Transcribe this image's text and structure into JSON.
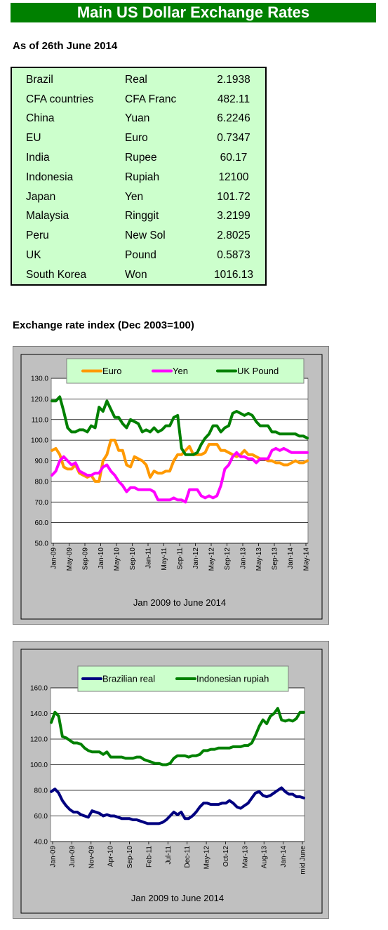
{
  "title": "Main US Dollar Exchange Rates",
  "as_of": "As of 26th June 2014",
  "rates": [
    {
      "country": "Brazil",
      "currency": "Real",
      "value": "2.1938"
    },
    {
      "country": "CFA countries",
      "currency": "CFA Franc",
      "value": "482.11"
    },
    {
      "country": "China",
      "currency": "Yuan",
      "value": "6.2246"
    },
    {
      "country": "EU",
      "currency": "Euro",
      "value": "0.7347"
    },
    {
      "country": "India",
      "currency": "Rupee",
      "value": "60.17"
    },
    {
      "country": "Indonesia",
      "currency": "Rupiah",
      "value": "12100"
    },
    {
      "country": "Japan",
      "currency": "Yen",
      "value": "101.72"
    },
    {
      "country": "Malaysia",
      "currency": "Ringgit",
      "value": "3.2199"
    },
    {
      "country": "Peru",
      "currency": "New Sol",
      "value": "2.8025"
    },
    {
      "country": "UK",
      "currency": "Pound",
      "value": "0.5873"
    },
    {
      "country": "South Korea",
      "currency": "Won",
      "value": "1016.13"
    }
  ],
  "section_title": "Exchange rate index (Dec 2003=100)",
  "chart_data": [
    {
      "type": "line",
      "xlabel": "Jan 2009 to June 2014",
      "ylim": [
        50,
        130
      ],
      "y_ticks": [
        "50.0",
        "60.0",
        "70.0",
        "80.0",
        "90.0",
        "100.0",
        "110.0",
        "120.0",
        "130.0"
      ],
      "x_tick_labels": [
        "Jan-09",
        "May-09",
        "Sep-09",
        "Jan-10",
        "May-10",
        "Sep-10",
        "Jan-11",
        "May-11",
        "Sep-11",
        "Jan-12",
        "May-12",
        "Sep-12",
        "Jan-13",
        "May-13",
        "Sep-13",
        "Jan-14",
        "May-14"
      ],
      "grid": true,
      "legend_position": "top",
      "series": [
        {
          "name": "Euro",
          "color": "#ff9900",
          "values": [
            95,
            96,
            93,
            87,
            86,
            86,
            88,
            84,
            83,
            82,
            83,
            80,
            80,
            90,
            93,
            100,
            100,
            95,
            95,
            88,
            87,
            92,
            91,
            90,
            88,
            82,
            85,
            84,
            84,
            85,
            85,
            90,
            93,
            93,
            95,
            97,
            93,
            93,
            93,
            94,
            98,
            98,
            98,
            95,
            95,
            94,
            93,
            92,
            93,
            95,
            93,
            93,
            92,
            91,
            91,
            90,
            90,
            89,
            89,
            88,
            88,
            89,
            90,
            89,
            89,
            90
          ]
        },
        {
          "name": "Yen",
          "color": "#ff00ff",
          "values": [
            83,
            85,
            90,
            92,
            90,
            88,
            89,
            85,
            84,
            83,
            83,
            84,
            84,
            87,
            88,
            85,
            83,
            80,
            78,
            75,
            77,
            77,
            76,
            76,
            76,
            76,
            75,
            71,
            71,
            71,
            71,
            72,
            71,
            71,
            70,
            76,
            76,
            76,
            73,
            72,
            73,
            72,
            73,
            78,
            86,
            88,
            92,
            94,
            92,
            92,
            91,
            91,
            89,
            91,
            91,
            91,
            95,
            96,
            95,
            96,
            95,
            94,
            94,
            94,
            94,
            94
          ]
        },
        {
          "name": "UK Pound",
          "color": "#008000",
          "values": [
            119,
            119,
            121,
            114,
            106,
            104,
            104,
            105,
            105,
            104,
            107,
            106,
            116,
            114,
            119,
            115,
            111,
            111,
            108,
            106,
            110,
            109,
            108,
            104,
            105,
            104,
            106,
            104,
            105,
            107,
            107,
            111,
            112,
            96,
            93,
            93,
            93,
            94,
            98,
            101,
            103,
            107,
            107,
            104,
            106,
            107,
            113,
            114,
            113,
            112,
            113,
            112,
            109,
            107,
            107,
            107,
            104,
            104,
            103,
            103,
            103,
            103,
            103,
            102,
            102,
            101
          ]
        }
      ]
    },
    {
      "type": "line",
      "xlabel": "Jan 2009 to June 2014",
      "ylim": [
        40,
        160
      ],
      "y_ticks": [
        "40.0",
        "60.0",
        "80.0",
        "100.0",
        "120.0",
        "140.0",
        "160.0"
      ],
      "x_tick_labels": [
        "Jan-09",
        "Jun-09",
        "Nov-09",
        "Apr-10",
        "Sep-10",
        "Feb-11",
        "Jul-11",
        "Dec-11",
        "May-12",
        "Oct-12",
        "Mar-13",
        "Aug-13",
        "Jan-14",
        "mid June"
      ],
      "grid": true,
      "legend_position": "top",
      "series": [
        {
          "name": "Brazilian real",
          "color": "#000080",
          "values": [
            79,
            81,
            78,
            72,
            68,
            65,
            63,
            63,
            61,
            60,
            59,
            64,
            63,
            62,
            60,
            61,
            60,
            60,
            59,
            58,
            58,
            58,
            57,
            57,
            56,
            55,
            54,
            54,
            54,
            54,
            55,
            57,
            60,
            63,
            61,
            63,
            58,
            58,
            60,
            63,
            67,
            70,
            70,
            69,
            69,
            69,
            70,
            70,
            72,
            70,
            67,
            66,
            68,
            70,
            74,
            78,
            79,
            76,
            75,
            76,
            78,
            80,
            82,
            79,
            77,
            77,
            75,
            75,
            74
          ]
        },
        {
          "name": "Indonesian rupiah",
          "color": "#008000",
          "values": [
            133,
            141,
            138,
            122,
            121,
            119,
            117,
            117,
            116,
            113,
            111,
            110,
            110,
            110,
            108,
            110,
            106,
            106,
            106,
            106,
            105,
            105,
            105,
            106,
            106,
            104,
            103,
            102,
            101,
            101,
            100,
            100,
            101,
            105,
            107,
            107,
            107,
            106,
            107,
            107,
            108,
            111,
            111,
            112,
            112,
            113,
            113,
            113,
            113,
            114,
            114,
            114,
            115,
            115,
            117,
            123,
            130,
            135,
            132,
            138,
            140,
            144,
            135,
            134,
            135,
            134,
            136,
            141,
            141
          ]
        }
      ]
    }
  ]
}
